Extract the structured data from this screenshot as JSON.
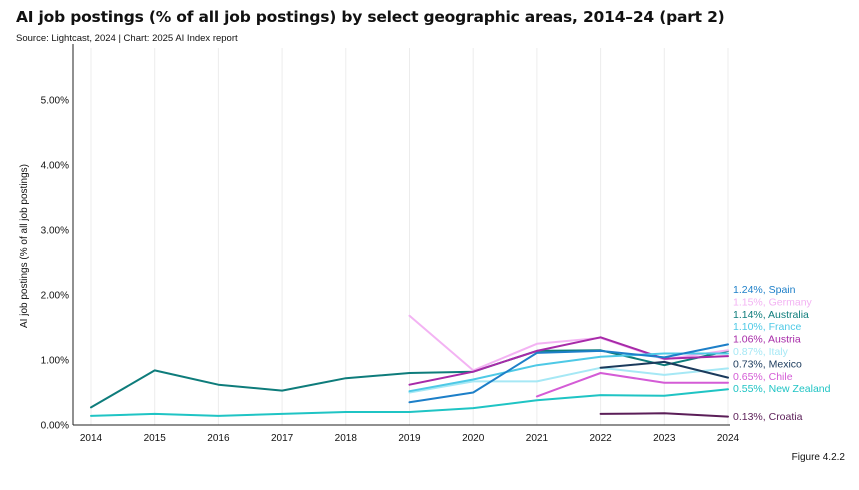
{
  "title": "AI job postings (% of all job postings) by select geographic areas, 2014–24 (part 2)",
  "subtitle": "Source: Lightcast, 2024 | Chart: 2025 AI Index report",
  "figure_label": "Figure 4.2.2",
  "chart_data": {
    "type": "line",
    "ylabel": "AI job postings (% of all job postings)",
    "xlabel": "",
    "x": [
      2014,
      2015,
      2016,
      2017,
      2018,
      2019,
      2020,
      2021,
      2022,
      2023,
      2024
    ],
    "x_tick_labels": [
      "2014",
      "2015",
      "2016",
      "2017",
      "2018",
      "2019",
      "2020",
      "2021",
      "2022",
      "2023",
      "2024"
    ],
    "ylim": [
      0,
      5.8
    ],
    "y_ticks": [
      0,
      1,
      2,
      3,
      4,
      5
    ],
    "y_tick_labels": [
      "0.00%",
      "1.00%",
      "2.00%",
      "3.00%",
      "4.00%",
      "5.00%"
    ],
    "grid": "vertical",
    "series": [
      {
        "name": "Australia",
        "end_label": "1.14%, Australia",
        "color": "#0e7c7b",
        "values": [
          0.27,
          0.84,
          0.62,
          0.53,
          0.72,
          0.8,
          0.82,
          1.14,
          1.15,
          0.92,
          1.14
        ]
      },
      {
        "name": "New Zealand",
        "end_label": "0.55%, New Zealand",
        "color": "#1fc4c4",
        "values": [
          0.14,
          0.17,
          0.14,
          0.17,
          0.2,
          0.2,
          0.26,
          0.38,
          0.46,
          0.45,
          0.55
        ]
      },
      {
        "name": "Germany",
        "end_label": "1.15%, Germany",
        "color": "#f3b3f3",
        "values": [
          null,
          null,
          null,
          null,
          null,
          1.68,
          0.84,
          1.25,
          1.34,
          1.01,
          1.15
        ]
      },
      {
        "name": "Austria",
        "end_label": "1.06%, Austria",
        "color": "#a72aa8",
        "values": [
          null,
          null,
          null,
          null,
          null,
          0.62,
          0.82,
          1.14,
          1.35,
          1.02,
          1.06
        ]
      },
      {
        "name": "Italy",
        "end_label": "0.87%, Italy",
        "color": "#a6e8f5",
        "values": [
          null,
          null,
          null,
          null,
          null,
          0.5,
          0.67,
          0.67,
          0.88,
          0.77,
          0.87
        ]
      },
      {
        "name": "France",
        "end_label": "1.10%, France",
        "color": "#4ec9e6",
        "values": [
          null,
          null,
          null,
          null,
          null,
          0.52,
          0.7,
          0.92,
          1.05,
          1.1,
          1.1
        ]
      },
      {
        "name": "Spain",
        "end_label": "1.24%, Spain",
        "color": "#1d7fc8",
        "values": [
          null,
          null,
          null,
          null,
          null,
          0.35,
          0.5,
          1.11,
          1.14,
          1.04,
          1.24
        ]
      },
      {
        "name": "Chile",
        "end_label": "0.65%, Chile",
        "color": "#d45cd6",
        "values": [
          null,
          null,
          null,
          null,
          null,
          null,
          null,
          0.44,
          0.8,
          0.65,
          0.65
        ]
      },
      {
        "name": "Mexico",
        "end_label": "0.73%, Mexico",
        "color": "#1b3a5c",
        "values": [
          null,
          null,
          null,
          null,
          null,
          null,
          null,
          null,
          0.88,
          0.97,
          0.73
        ]
      },
      {
        "name": "Croatia",
        "end_label": "0.13%, Croatia",
        "color": "#5b1e58",
        "values": [
          null,
          null,
          null,
          null,
          null,
          null,
          null,
          null,
          0.17,
          0.18,
          0.13
        ]
      }
    ],
    "end_label_order": [
      "Spain",
      "Germany",
      "Australia",
      "France",
      "Austria",
      "Italy",
      "Mexico",
      "Chile",
      "New Zealand",
      "Croatia"
    ]
  }
}
